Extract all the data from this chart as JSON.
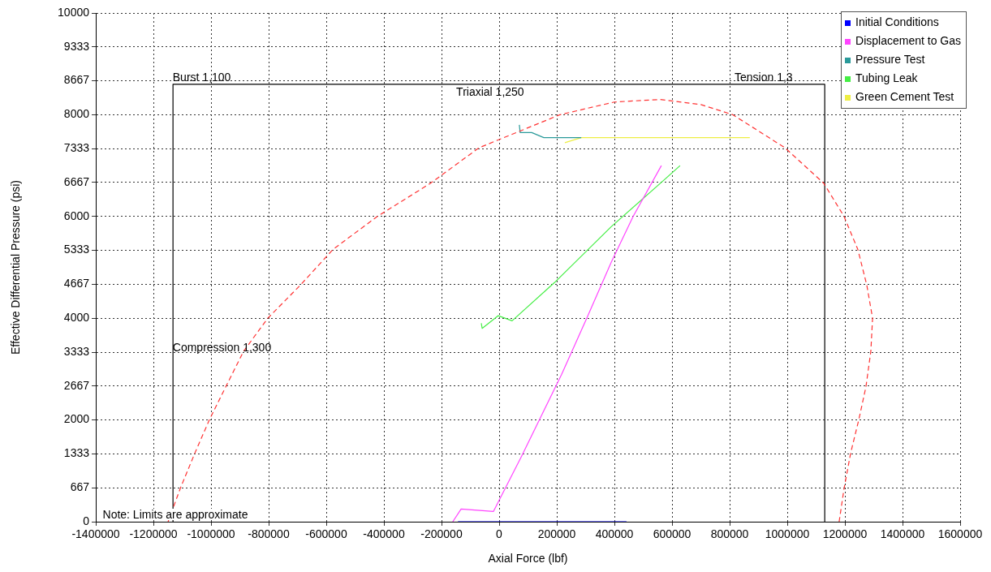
{
  "chart_data": {
    "type": "line",
    "xlabel": "Axial Force (lbf)",
    "ylabel": "Effective Differential Pressure (psi)",
    "xlim": [
      -1400000,
      1600000
    ],
    "xticks": [
      -1400000,
      -1200000,
      -1000000,
      -800000,
      -600000,
      -400000,
      -200000,
      0,
      200000,
      400000,
      600000,
      800000,
      1000000,
      1200000,
      1400000,
      1600000
    ],
    "ylim": [
      0,
      10000
    ],
    "yticks": [
      0,
      667,
      1333,
      2000,
      2667,
      3333,
      4000,
      4667,
      5333,
      6000,
      6667,
      7333,
      8000,
      8667,
      9333,
      10000
    ],
    "grid": true,
    "legend": "top right",
    "marker": "none",
    "series": [
      {
        "color": "#ff3333",
        "line_style": "dashed",
        "x": [
          -1149000,
          -1107000,
          -1056000,
          -1006000,
          -949000,
          -887000,
          -803000,
          -690000,
          -577000,
          -423000,
          -239000,
          -70000,
          211000,
          400000,
          558000,
          700000,
          811000,
          992000,
          1127000,
          1197000,
          1245000,
          1276000,
          1296000,
          1290000,
          1273000,
          1248000,
          1220000,
          1197000,
          1180000
        ],
        "values": [
          0,
          650,
          1350,
          2000,
          2650,
          3350,
          4000,
          4650,
          5350,
          6000,
          6650,
          7350,
          8000,
          8250,
          8300,
          8200,
          8000,
          7350,
          6650,
          6000,
          5350,
          4650,
          4000,
          3350,
          2650,
          2000,
          1350,
          650,
          0
        ]
      },
      {
        "color": "#000000",
        "line_style": "solid",
        "x": [
          -1132000,
          -1132000,
          1130000,
          1130000
        ],
        "values": [
          0,
          8600,
          8600,
          0
        ]
      },
      {
        "name": "Initial Conditions",
        "color": "#0000ff",
        "x": [
          -143000,
          99000,
          192000,
          217000,
          327000,
          377000,
          403000,
          442000
        ],
        "values": [
          0,
          0,
          0,
          0,
          0,
          0,
          0,
          0
        ]
      },
      {
        "name": "Displacement to Gas",
        "color": "#ff44ff",
        "x": [
          -161000,
          -132000,
          -20000,
          79000,
          217000,
          304000,
          389000,
          465000,
          563000
        ],
        "values": [
          0,
          250,
          200,
          1300,
          2900,
          4000,
          5100,
          6000,
          7000
        ]
      },
      {
        "name": "Pressure Test",
        "color": "#2a9a9a",
        "x": [
          70000,
          73000,
          113000,
          155000,
          285000
        ],
        "values": [
          7800,
          7650,
          7650,
          7550,
          7550
        ]
      },
      {
        "name": "Tubing Leak",
        "color": "#44ee44",
        "x": [
          -62000,
          -59000,
          -3000,
          45000,
          192000,
          389000,
          569000,
          628000
        ],
        "values": [
          3900,
          3800,
          4050,
          3950,
          4700,
          5800,
          6700,
          7000
        ]
      },
      {
        "name": "Green Cement Test",
        "color": "#eeee44",
        "x": [
          228000,
          285000,
          870000
        ],
        "values": [
          7450,
          7550,
          7550
        ]
      }
    ],
    "annotations": [
      "Burst 1,100",
      "Triaxial 1,250",
      "Tension 1,3",
      "Compression 1,300",
      "Note: Limits are approximate"
    ]
  }
}
